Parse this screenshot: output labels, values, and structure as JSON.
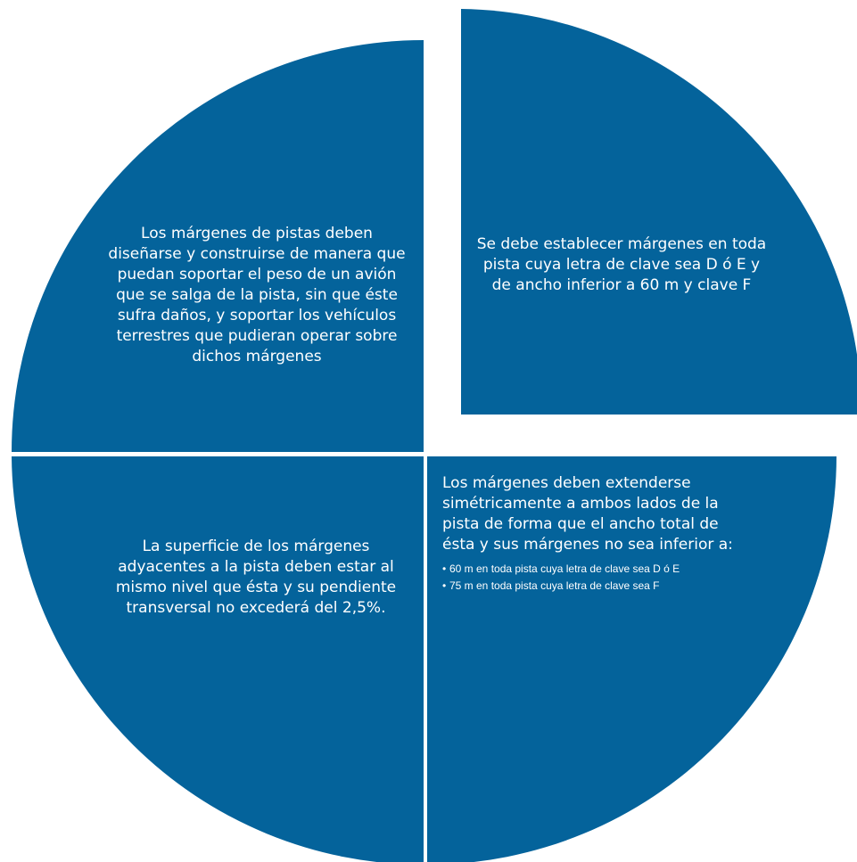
{
  "colors": {
    "quadrant_fill": "#04639B",
    "text": "#FFFFFF",
    "background": "#FFFFFF"
  },
  "quadrants": {
    "top_left": {
      "text": "Los márgenes de pistas deben diseñarse y construirse de manera que puedan soportar el peso de un avión que se salga de la pista, sin que éste sufra daños, y soportar los vehículos terrestres que pudieran operar sobre dichos márgenes"
    },
    "top_right": {
      "text": "Se debe establecer márgenes en toda pista cuya letra de clave sea D ó E y de ancho inferior a 60 m y clave F"
    },
    "bottom_left": {
      "text": "La superficie de los márgenes adyacentes a la pista deben estar al mismo nivel que ésta y su pendiente transversal no excederá del 2,5%."
    },
    "bottom_right": {
      "text": "Los márgenes deben extenderse simétricamente a ambos lados de la pista de forma que el ancho total de ésta y sus márgenes no sea inferior a:",
      "bullets": [
        {
          "marker": "•",
          "text": "60 m en toda pista cuya letra de clave sea D ó E"
        },
        {
          "marker": "•",
          "text": "75 m en toda pista cuya letra de clave sea F"
        }
      ]
    }
  }
}
